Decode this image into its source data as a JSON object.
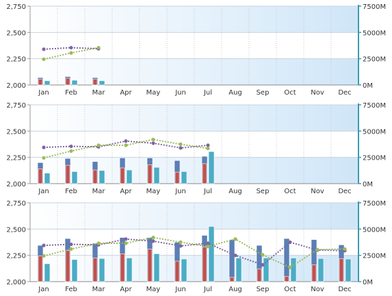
{
  "chart_data": [
    {
      "type": "bar",
      "categories": [
        "Jan",
        "Feb",
        "Mar",
        "Apr",
        "May",
        "Jun",
        "Jul",
        "Aug",
        "Sep",
        "Oct",
        "Nov",
        "Dec"
      ],
      "left_axis": {
        "ticks": [
          "2,000",
          "2,250",
          "2,500",
          "2,750"
        ],
        "range": [
          2000,
          2750
        ]
      },
      "right_axis": {
        "ticks": [
          "0M",
          "2500M",
          "5000M",
          "7500M"
        ],
        "range": [
          0,
          7500
        ]
      },
      "bar_series": [
        {
          "values": [
            2070,
            2080,
            2070,
            null,
            null,
            null,
            null,
            null,
            null,
            null,
            null,
            null
          ],
          "color": "#5b7fb5"
        },
        {
          "values": [
            2055,
            2065,
            2055,
            null,
            null,
            null,
            null,
            null,
            null,
            null,
            null,
            null
          ],
          "color": "#c0504d"
        },
        {
          "values": [
            2040,
            2045,
            2040,
            null,
            null,
            null,
            null,
            null,
            null,
            null,
            null,
            null
          ],
          "color": "#4bacc6"
        }
      ],
      "line_series": [
        {
          "values": [
            2340,
            2355,
            2345,
            null,
            null,
            null,
            null,
            null,
            null,
            null,
            null,
            null
          ],
          "color": "#8064a2"
        },
        {
          "values": [
            2245,
            2305,
            2355,
            null,
            null,
            null,
            null,
            null,
            null,
            null,
            null,
            null
          ],
          "color": "#9bbb59"
        }
      ]
    },
    {
      "type": "bar",
      "categories": [
        "Jan",
        "Feb",
        "Mar",
        "Apr",
        "May",
        "Jun",
        "Jul",
        "Aug",
        "Sep",
        "Oct",
        "Nov",
        "Dec"
      ],
      "left_axis": {
        "ticks": [
          "2,000",
          "2,250",
          "2,500",
          "2,750"
        ],
        "range": [
          2000,
          2750
        ]
      },
      "right_axis": {
        "ticks": [
          "0M",
          "2500M",
          "5000M",
          "7500M"
        ],
        "range": [
          0,
          7500
        ]
      },
      "bar_series": [
        {
          "values": [
            2200,
            2240,
            2210,
            2245,
            2245,
            2220,
            2260,
            null,
            null,
            null,
            null,
            null
          ],
          "color": "#5b7fb5"
        },
        {
          "values": [
            2140,
            2175,
            2130,
            2150,
            2180,
            2110,
            2190,
            null,
            null,
            null,
            null,
            null
          ],
          "color": "#c0504d"
        },
        {
          "values": [
            2100,
            2115,
            2125,
            2130,
            2155,
            2115,
            2305,
            null,
            null,
            null,
            null,
            null
          ],
          "color": "#4bacc6"
        }
      ],
      "line_series": [
        {
          "values": [
            2345,
            2355,
            2350,
            2405,
            2385,
            2340,
            2365,
            null,
            null,
            null,
            null,
            null
          ],
          "color": "#8064a2"
        },
        {
          "values": [
            2245,
            2310,
            2365,
            2365,
            2420,
            2375,
            2335,
            null,
            null,
            null,
            null,
            null
          ],
          "color": "#9bbb59"
        }
      ]
    },
    {
      "type": "bar",
      "categories": [
        "Jan",
        "Feb",
        "Mar",
        "Apr",
        "May",
        "Jun",
        "Jul",
        "Aug",
        "Sep",
        "Oct",
        "Nov",
        "Dec"
      ],
      "left_axis": {
        "ticks": [
          "2,000",
          "2,250",
          "2,500",
          "2,750"
        ],
        "range": [
          2000,
          2750
        ]
      },
      "right_axis": {
        "ticks": [
          "0M",
          "2500M",
          "5000M",
          "7500M"
        ],
        "range": [
          0,
          7500
        ]
      },
      "bar_series": [
        {
          "values": [
            2345,
            2410,
            2365,
            2420,
            2420,
            2375,
            2440,
            2400,
            2345,
            2410,
            2400,
            2350
          ],
          "color": "#5b7fb5"
        },
        {
          "values": [
            2245,
            2295,
            2225,
            2265,
            2310,
            2195,
            2330,
            2040,
            2120,
            2050,
            2160,
            2220
          ],
          "color": "#c0504d"
        },
        {
          "values": [
            2170,
            2210,
            2220,
            2225,
            2265,
            2215,
            2525,
            2225,
            2225,
            2225,
            2220,
            2215
          ],
          "color": "#4bacc6"
        }
      ],
      "line_series": [
        {
          "values": [
            2345,
            2355,
            2350,
            2405,
            2385,
            2340,
            2365,
            2250,
            2160,
            2375,
            2300,
            2295
          ],
          "color": "#8064a2"
        },
        {
          "values": [
            2245,
            2310,
            2365,
            2365,
            2420,
            2375,
            2335,
            2405,
            2255,
            2135,
            2305,
            2310
          ],
          "color": "#9bbb59"
        }
      ]
    }
  ]
}
